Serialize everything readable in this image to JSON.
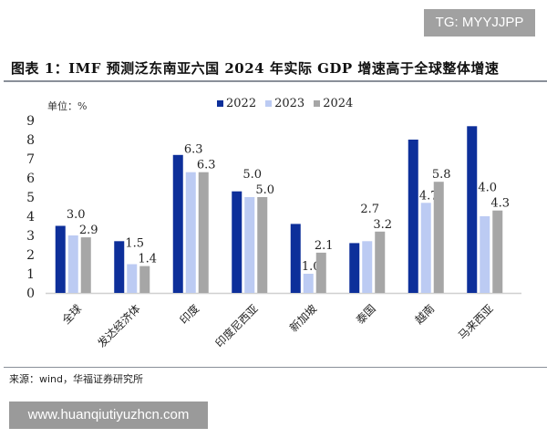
{
  "watermark_top": "TG: MYYJJPP",
  "watermark_bottom": "www.huanqiutiyuzhcn.com",
  "colors": {
    "2022": "#0d2f9a",
    "2023": "#bccbf3",
    "2024": "#a6a6a6"
  },
  "chart_data": {
    "type": "bar",
    "title": "图表 1：IMF 预测泛东南亚六国 2024 年实际 GDP 增速高于全球整体增速",
    "unit_label": "单位：%",
    "categories": [
      "全球",
      "发达经济体",
      "印度",
      "印度尼西亚",
      "新加坡",
      "泰国",
      "越南",
      "马来西亚"
    ],
    "series": [
      {
        "name": "2022",
        "values": [
          3.5,
          2.7,
          7.2,
          5.3,
          3.6,
          2.6,
          8.0,
          8.7
        ]
      },
      {
        "name": "2023",
        "values": [
          3.0,
          1.5,
          6.3,
          5.0,
          1.0,
          2.7,
          4.7,
          4.0
        ]
      },
      {
        "name": "2024",
        "values": [
          2.9,
          1.4,
          6.3,
          5.0,
          2.1,
          3.2,
          5.8,
          4.3
        ]
      }
    ],
    "data_labels": [
      "2023",
      "2024"
    ],
    "ylim": [
      0,
      9
    ],
    "yticks": [
      "0",
      "1",
      "2",
      "3",
      "4",
      "5",
      "6",
      "7",
      "8",
      "9"
    ],
    "grid": false,
    "legend": "top-center",
    "source": "来源：wind，华福证券研究所"
  }
}
